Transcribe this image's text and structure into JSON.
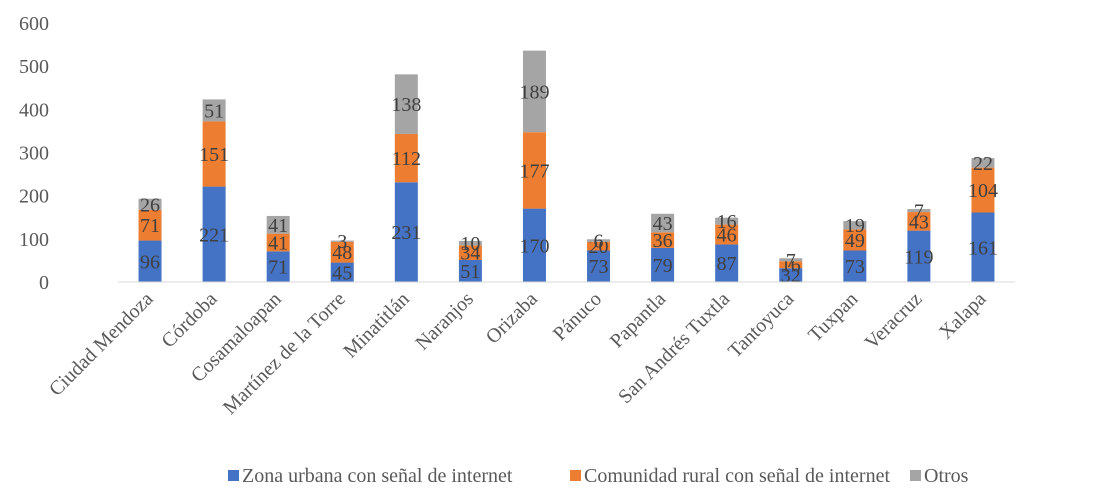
{
  "chart_data": {
    "type": "bar",
    "stacked": true,
    "title": "",
    "xlabel": "",
    "ylabel": "",
    "ylim": [
      0,
      600
    ],
    "yticks": [
      0,
      100,
      200,
      300,
      400,
      500,
      600
    ],
    "grid": false,
    "legend_position": "bottom",
    "categories": [
      "Ciudad Mendoza",
      "Córdoba",
      "Cosamaloapan",
      "Martínez de la Torre",
      "Minatitlán",
      "Naranjos",
      "Orizaba",
      "Pánuco",
      "Papantla",
      "San Andrés Tuxtla",
      "Tantoyuca",
      "Tuxpan",
      "Veracruz",
      "Xalapa"
    ],
    "series": [
      {
        "name": "Zona urbana con señal de internet",
        "color": "#4472C4",
        "values": [
          96,
          221,
          71,
          45,
          231,
          51,
          170,
          73,
          79,
          87,
          32,
          73,
          119,
          161
        ]
      },
      {
        "name": "Comunidad rural con señal de internet",
        "color": "#ED7D31",
        "values": [
          71,
          151,
          41,
          48,
          112,
          34,
          177,
          20,
          36,
          46,
          16,
          49,
          43,
          104
        ]
      },
      {
        "name": "Otros",
        "color": "#A5A5A5",
        "values": [
          26,
          51,
          41,
          3,
          138,
          10,
          189,
          6,
          43,
          16,
          7,
          19,
          7,
          22
        ]
      }
    ]
  }
}
